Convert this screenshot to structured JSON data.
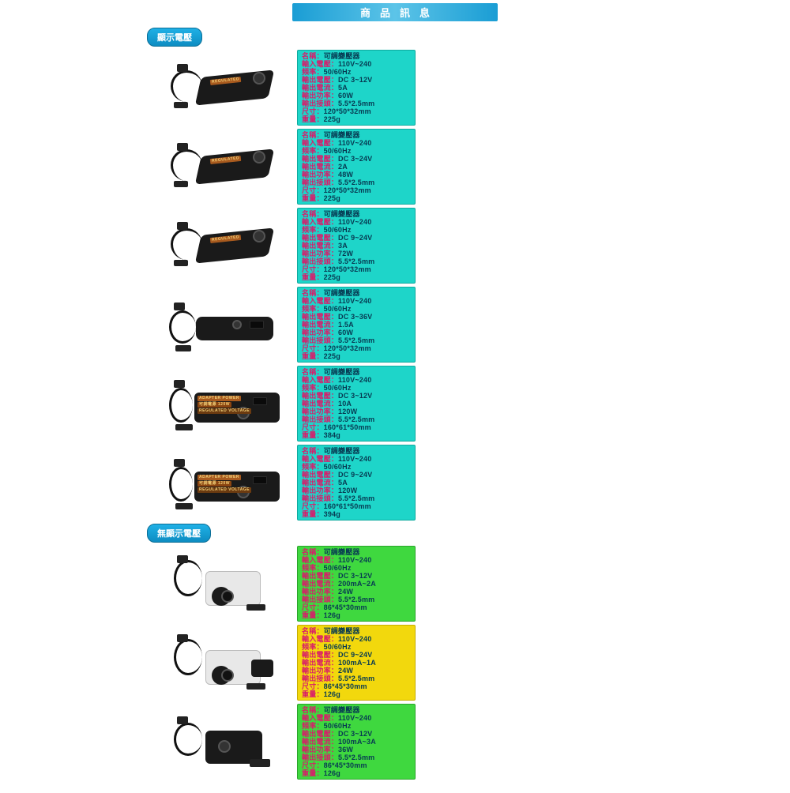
{
  "title": "商品訊息",
  "sections": [
    {
      "heading": "顯示電壓",
      "items": [
        {
          "color": "cyan",
          "photo": "brick-angled",
          "specs": [
            [
              "名稱",
              "可調變壓器"
            ],
            [
              "輸入電壓",
              "110V~240"
            ],
            [
              "頻率",
              "50/60Hz"
            ],
            [
              "輸出電壓",
              "DC 3~12V"
            ],
            [
              "輸出電流",
              "5A"
            ],
            [
              "輸出功率",
              "60W"
            ],
            [
              "輸出接頭",
              "5.5*2.5mm"
            ],
            [
              "尺寸",
              "120*50*32mm"
            ],
            [
              "重量",
              "225g"
            ]
          ]
        },
        {
          "color": "cyan",
          "photo": "brick-angled",
          "specs": [
            [
              "名稱",
              "可調變壓器"
            ],
            [
              "輸入電壓",
              "110V~240"
            ],
            [
              "頻率",
              "50/60Hz"
            ],
            [
              "輸出電壓",
              "DC 3~24V"
            ],
            [
              "輸出電流",
              "2A"
            ],
            [
              "輸出功率",
              "48W"
            ],
            [
              "輸出接頭",
              "5.5*2.5mm"
            ],
            [
              "尺寸",
              "120*50*32mm"
            ],
            [
              "重量",
              "225g"
            ]
          ]
        },
        {
          "color": "cyan",
          "photo": "brick-angled",
          "specs": [
            [
              "名稱",
              "可調變壓器"
            ],
            [
              "輸入電壓",
              "110V~240"
            ],
            [
              "頻率",
              "50/60Hz"
            ],
            [
              "輸出電壓",
              "DC 9~24V"
            ],
            [
              "輸出電流",
              "3A"
            ],
            [
              "輸出功率",
              "72W"
            ],
            [
              "輸出接頭",
              "5.5*2.5mm"
            ],
            [
              "尺寸",
              "120*50*32mm"
            ],
            [
              "重量",
              "225g"
            ]
          ]
        },
        {
          "color": "cyan",
          "photo": "brick-led",
          "specs": [
            [
              "名稱",
              "可調變壓器"
            ],
            [
              "輸入電壓",
              "110V~240"
            ],
            [
              "頻率",
              "50/60Hz"
            ],
            [
              "輸出電壓",
              "DC 3~36V"
            ],
            [
              "輸出電流",
              "1.5A"
            ],
            [
              "輸出功率",
              "60W"
            ],
            [
              "輸出接頭",
              "5.5*2.5mm"
            ],
            [
              "尺寸",
              "120*50*32mm"
            ],
            [
              "重量",
              "225g"
            ]
          ]
        },
        {
          "color": "cyan",
          "photo": "brick-big",
          "specs": [
            [
              "名稱",
              "可調變壓器"
            ],
            [
              "輸入電壓",
              "110V~240"
            ],
            [
              "頻率",
              "50/60Hz"
            ],
            [
              "輸出電壓",
              "DC 3~12V"
            ],
            [
              "輸出電流",
              "10A"
            ],
            [
              "輸出功率",
              "120W"
            ],
            [
              "輸出接頭",
              "5.5*2.5mm"
            ],
            [
              "尺寸",
              "160*61*50mm"
            ],
            [
              "重量",
              "384g"
            ]
          ]
        },
        {
          "color": "cyan",
          "photo": "brick-big",
          "specs": [
            [
              "名稱",
              "可調變壓器"
            ],
            [
              "輸入電壓",
              "110V~240"
            ],
            [
              "頻率",
              "50/60Hz"
            ],
            [
              "輸出電壓",
              "DC 9~24V"
            ],
            [
              "輸出電流",
              "5A"
            ],
            [
              "輸出功率",
              "120W"
            ],
            [
              "輸出接頭",
              "5.5*2.5mm"
            ],
            [
              "尺寸",
              "160*61*50mm"
            ],
            [
              "重量",
              "394g"
            ]
          ]
        }
      ]
    },
    {
      "heading": "無顯示電壓",
      "items": [
        {
          "color": "green",
          "photo": "compact-white",
          "specs": [
            [
              "名稱",
              "可調變壓器"
            ],
            [
              "輸入電壓",
              "110V~240"
            ],
            [
              "頻率",
              "50/60Hz"
            ],
            [
              "輸出電壓",
              "DC 3~12V"
            ],
            [
              "輸出電流",
              "200mA~2A"
            ],
            [
              "輸出功率",
              "24W"
            ],
            [
              "輸出接頭",
              "5.5*2.5mm"
            ],
            [
              "尺寸",
              "86*45*30mm"
            ],
            [
              "重量",
              "126g"
            ]
          ]
        },
        {
          "color": "yellow",
          "photo": "compact-white2",
          "specs": [
            [
              "名稱",
              "可調變壓器"
            ],
            [
              "輸入電壓",
              "110V~240"
            ],
            [
              "頻率",
              "50/60Hz"
            ],
            [
              "輸出電壓",
              "DC 9~24V"
            ],
            [
              "輸出電流",
              "100mA~1A"
            ],
            [
              "輸出功率",
              "24W"
            ],
            [
              "輸出接頭",
              "5.5*2.5mm"
            ],
            [
              "尺寸",
              "86*45*30mm"
            ],
            [
              "重量",
              "126g"
            ]
          ]
        },
        {
          "color": "green",
          "photo": "compact-black",
          "specs": [
            [
              "名稱",
              "可調變壓器"
            ],
            [
              "輸入電壓",
              "110V~240"
            ],
            [
              "頻率",
              "50/60Hz"
            ],
            [
              "輸出電壓",
              "DC 3~12V"
            ],
            [
              "輸出電流",
              "100mA~3A"
            ],
            [
              "輸出功率",
              "36W"
            ],
            [
              "輸出接頭",
              "5.5*2.5mm"
            ],
            [
              "尺寸",
              "86*45*30mm"
            ],
            [
              "重量",
              "126g"
            ]
          ]
        }
      ]
    }
  ]
}
